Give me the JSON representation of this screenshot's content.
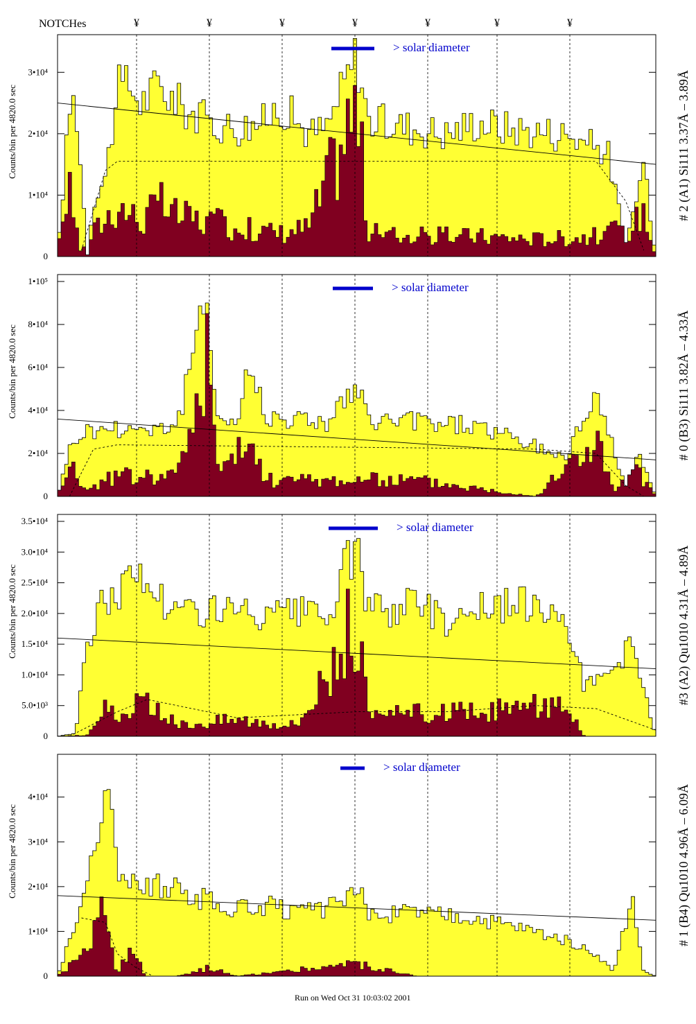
{
  "header": {
    "notches_label": "NOTCHes",
    "notch_symbol": "¥",
    "notch_positions": [
      197,
      302,
      407,
      512,
      617,
      717,
      822
    ]
  },
  "footer": {
    "run_text": "Run on Wed Oct 31 10:03:02 2001"
  },
  "colors": {
    "fill_total": "#ffff33",
    "fill_sub": "#800020",
    "annotation": "#0000cc",
    "frame": "#000000"
  },
  "chart_data": [
    {
      "type": "histogram",
      "panel_label": "# 2 (A1) Si111  3.37Å – 3.89Å",
      "ylabel": "Counts/bin per    4820.0 sec",
      "ylim": [
        0,
        35000
      ],
      "yticks": [
        {
          "v": 0,
          "label": "0"
        },
        {
          "v": 10000,
          "label": "1•10⁴"
        },
        {
          "v": 20000,
          "label": "2•10⁴"
        },
        {
          "v": 30000,
          "label": "3•10⁴"
        }
      ],
      "annotation": "> solar diameter",
      "bar_span": [
        478,
        540
      ],
      "peak_at": [
        [
          0,
          0
        ],
        [
          0.02,
          24000
        ],
        [
          0.03,
          26000
        ],
        [
          0.05,
          300
        ],
        [
          0.06,
          9000
        ],
        [
          0.08,
          13000
        ],
        [
          0.1,
          27000
        ],
        [
          0.12,
          28000
        ],
        [
          0.14,
          25000
        ],
        [
          0.17,
          28000
        ],
        [
          0.2,
          25000
        ],
        [
          0.25,
          22000
        ],
        [
          0.3,
          21000
        ],
        [
          0.35,
          22000
        ],
        [
          0.37,
          25000
        ],
        [
          0.42,
          20000
        ],
        [
          0.45,
          21000
        ],
        [
          0.5,
          33000
        ],
        [
          0.52,
          22000
        ],
        [
          0.6,
          21000
        ],
        [
          0.65,
          20000
        ],
        [
          0.7,
          22000
        ],
        [
          0.75,
          21000
        ],
        [
          0.85,
          20000
        ],
        [
          0.92,
          17000
        ],
        [
          0.95,
          2000
        ],
        [
          0.98,
          15000
        ],
        [
          1,
          0
        ]
      ],
      "sub_at": [
        [
          0,
          0
        ],
        [
          0.02,
          15000
        ],
        [
          0.035,
          1000
        ],
        [
          0.1,
          9000
        ],
        [
          0.14,
          6000
        ],
        [
          0.17,
          9000
        ],
        [
          0.2,
          7000
        ],
        [
          0.3,
          5000
        ],
        [
          0.37,
          4000
        ],
        [
          0.42,
          5000
        ],
        [
          0.5,
          26000
        ],
        [
          0.52,
          4000
        ],
        [
          0.6,
          3500
        ],
        [
          0.7,
          3500
        ],
        [
          0.8,
          3000
        ],
        [
          0.9,
          3500
        ],
        [
          0.96,
          5000
        ],
        [
          0.98,
          8000
        ],
        [
          1,
          0
        ]
      ],
      "line_solid": [
        [
          0,
          25000
        ],
        [
          1,
          15000
        ]
      ],
      "line_dashed": [
        [
          0.04,
          1000
        ],
        [
          0.08,
          14000
        ],
        [
          0.1,
          15500
        ],
        [
          0.9,
          15500
        ],
        [
          0.95,
          9000
        ],
        [
          0.98,
          1000
        ]
      ]
    },
    {
      "type": "histogram",
      "panel_label": "# 0 (B3) Si111  3.82Å – 4.33Å",
      "ylabel": "Counts/bin per    4820.0 sec",
      "ylim": [
        0,
        100000
      ],
      "yticks": [
        {
          "v": 0,
          "label": "0"
        },
        {
          "v": 20000,
          "label": "2•10⁴"
        },
        {
          "v": 40000,
          "label": "4•10⁴"
        },
        {
          "v": 60000,
          "label": "6•10⁴"
        },
        {
          "v": 80000,
          "label": "8•10⁴"
        },
        {
          "v": 100000,
          "label": "1•10⁵"
        }
      ],
      "annotation": "> solar diameter",
      "bar_span": [
        480,
        538
      ],
      "peak_at": [
        [
          0,
          0
        ],
        [
          0.02,
          22000
        ],
        [
          0.04,
          30000
        ],
        [
          0.1,
          32000
        ],
        [
          0.15,
          32000
        ],
        [
          0.2,
          33000
        ],
        [
          0.25,
          92000
        ],
        [
          0.27,
          35000
        ],
        [
          0.3,
          35000
        ],
        [
          0.32,
          60000
        ],
        [
          0.35,
          38000
        ],
        [
          0.4,
          36000
        ],
        [
          0.45,
          35000
        ],
        [
          0.5,
          50000
        ],
        [
          0.52,
          35000
        ],
        [
          0.6,
          35000
        ],
        [
          0.7,
          33000
        ],
        [
          0.8,
          23000
        ],
        [
          0.85,
          18000
        ],
        [
          0.9,
          50000
        ],
        [
          0.92,
          30000
        ],
        [
          0.95,
          5000
        ],
        [
          0.97,
          20000
        ],
        [
          1,
          0
        ]
      ],
      "sub_at": [
        [
          0,
          0
        ],
        [
          0.02,
          20000
        ],
        [
          0.04,
          3000
        ],
        [
          0.1,
          10000
        ],
        [
          0.2,
          10000
        ],
        [
          0.25,
          68000
        ],
        [
          0.27,
          10000
        ],
        [
          0.32,
          26000
        ],
        [
          0.35,
          8000
        ],
        [
          0.5,
          8000
        ],
        [
          0.6,
          8000
        ],
        [
          0.8,
          0
        ],
        [
          0.9,
          28000
        ],
        [
          0.93,
          2000
        ],
        [
          0.97,
          13000
        ],
        [
          1,
          0
        ]
      ],
      "line_solid": [
        [
          0,
          36000
        ],
        [
          1,
          17000
        ]
      ],
      "line_dashed": [
        [
          0.02,
          0
        ],
        [
          0.06,
          22000
        ],
        [
          0.1,
          24000
        ],
        [
          0.8,
          22000
        ],
        [
          0.9,
          20000
        ],
        [
          0.95,
          5000
        ],
        [
          0.98,
          0
        ]
      ]
    },
    {
      "type": "histogram",
      "panel_label": "#3 (A2) Qu1010  4.31Å – 4.89Å",
      "ylabel": "Counts/bin per    4820.0 sec",
      "ylim": [
        0,
        35000
      ],
      "yticks": [
        {
          "v": 0,
          "label": "0"
        },
        {
          "v": 5000,
          "label": "5.0•10³"
        },
        {
          "v": 10000,
          "label": "1.0•10⁴"
        },
        {
          "v": 15000,
          "label": "1.5•10⁴"
        },
        {
          "v": 20000,
          "label": "2.0•10⁴"
        },
        {
          "v": 25000,
          "label": "2.5•10⁴"
        },
        {
          "v": 30000,
          "label": "3.0•10⁴"
        },
        {
          "v": 35000,
          "label": "3.5•10⁴"
        }
      ],
      "annotation": "> solar diameter",
      "bar_span": [
        474,
        545
      ],
      "peak_at": [
        [
          0,
          0
        ],
        [
          0.03,
          500
        ],
        [
          0.05,
          15000
        ],
        [
          0.07,
          21000
        ],
        [
          0.1,
          24000
        ],
        [
          0.13,
          26000
        ],
        [
          0.15,
          25000
        ],
        [
          0.2,
          20000
        ],
        [
          0.25,
          21000
        ],
        [
          0.3,
          20000
        ],
        [
          0.35,
          19000
        ],
        [
          0.4,
          20000
        ],
        [
          0.45,
          19000
        ],
        [
          0.5,
          32000
        ],
        [
          0.52,
          20000
        ],
        [
          0.6,
          22000
        ],
        [
          0.65,
          19000
        ],
        [
          0.7,
          21000
        ],
        [
          0.75,
          21000
        ],
        [
          0.8,
          22000
        ],
        [
          0.85,
          20000
        ],
        [
          0.88,
          8000
        ],
        [
          0.92,
          10000
        ],
        [
          0.96,
          15000
        ],
        [
          1,
          0
        ]
      ],
      "sub_at": [
        [
          0,
          0
        ],
        [
          0.05,
          200
        ],
        [
          0.08,
          6000
        ],
        [
          0.1,
          2000
        ],
        [
          0.14,
          6000
        ],
        [
          0.2,
          2000
        ],
        [
          0.3,
          3000
        ],
        [
          0.4,
          2000
        ],
        [
          0.5,
          20000
        ],
        [
          0.52,
          3000
        ],
        [
          0.6,
          4000
        ],
        [
          0.7,
          4000
        ],
        [
          0.78,
          5000
        ],
        [
          0.85,
          6000
        ],
        [
          0.88,
          0
        ],
        [
          1,
          0
        ]
      ],
      "line_solid": [
        [
          0,
          16000
        ],
        [
          1,
          11000
        ]
      ],
      "line_dashed": [
        [
          0.02,
          0
        ],
        [
          0.1,
          4000
        ],
        [
          0.15,
          6000
        ],
        [
          0.3,
          3000
        ],
        [
          0.4,
          3500
        ],
        [
          0.5,
          4000
        ],
        [
          0.65,
          4000
        ],
        [
          0.8,
          5000
        ],
        [
          0.9,
          4500
        ],
        [
          1,
          1000
        ]
      ]
    },
    {
      "type": "histogram",
      "panel_label": "# 1 (B4) Qu1010 4.96Å – 6.09Å",
      "ylabel": "Counts/bin per    4820.0 sec",
      "ylim": [
        0,
        48000
      ],
      "yticks": [
        {
          "v": 0,
          "label": "0"
        },
        {
          "v": 10000,
          "label": "1•10⁴"
        },
        {
          "v": 20000,
          "label": "2•10⁴"
        },
        {
          "v": 30000,
          "label": "3•10⁴"
        },
        {
          "v": 40000,
          "label": "4•10⁴"
        }
      ],
      "annotation": "> solar diameter",
      "bar_span": [
        491,
        526
      ],
      "peak_at": [
        [
          0,
          0
        ],
        [
          0.02,
          8000
        ],
        [
          0.04,
          15000
        ],
        [
          0.06,
          30000
        ],
        [
          0.08,
          43000
        ],
        [
          0.1,
          25000
        ],
        [
          0.13,
          22000
        ],
        [
          0.18,
          20000
        ],
        [
          0.25,
          17000
        ],
        [
          0.3,
          15000
        ],
        [
          0.35,
          16000
        ],
        [
          0.4,
          14000
        ],
        [
          0.45,
          15000
        ],
        [
          0.5,
          20000
        ],
        [
          0.52,
          14000
        ],
        [
          0.6,
          14000
        ],
        [
          0.7,
          13000
        ],
        [
          0.8,
          10000
        ],
        [
          0.85,
          8000
        ],
        [
          0.9,
          5000
        ],
        [
          0.93,
          1000
        ],
        [
          0.96,
          18000
        ],
        [
          0.98,
          1000
        ],
        [
          1,
          0
        ]
      ],
      "sub_at": [
        [
          0,
          0
        ],
        [
          0.06,
          8000
        ],
        [
          0.07,
          18000
        ],
        [
          0.09,
          6000
        ],
        [
          0.1,
          0
        ],
        [
          0.12,
          6000
        ],
        [
          0.15,
          0
        ],
        [
          0.2,
          0
        ],
        [
          0.25,
          2000
        ],
        [
          0.3,
          0
        ],
        [
          0.5,
          3000
        ],
        [
          0.6,
          0
        ],
        [
          0.8,
          0
        ],
        [
          1,
          0
        ]
      ],
      "line_solid": [
        [
          0,
          18000
        ],
        [
          1,
          12500
        ]
      ],
      "line_dashed": [
        [
          0.04,
          13000
        ],
        [
          0.08,
          12000
        ],
        [
          0.1,
          5000
        ],
        [
          0.13,
          2000
        ],
        [
          0.16,
          0
        ]
      ]
    }
  ]
}
